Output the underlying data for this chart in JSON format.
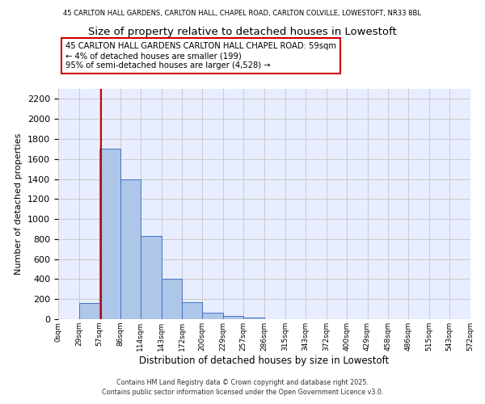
{
  "title_top": "45 CARLTON HALL GARDENS, CARLTON HALL, CHAPEL ROAD, CARLTON COLVILLE, LOWESTOFT, NR33 8BL",
  "title_main": "Size of property relative to detached houses in Lowestoft",
  "xlabel": "Distribution of detached houses by size in Lowestoft",
  "ylabel": "Number of detached properties",
  "bar_edges": [
    0,
    29,
    57,
    86,
    114,
    143,
    172,
    200,
    229,
    257,
    286,
    315,
    343,
    372,
    400,
    429,
    458,
    486,
    515,
    543,
    572
  ],
  "bar_heights": [
    0,
    160,
    1700,
    1400,
    830,
    400,
    170,
    65,
    30,
    20,
    0,
    0,
    0,
    0,
    0,
    0,
    0,
    0,
    0,
    0
  ],
  "bar_color": "#aec6e8",
  "bar_edgecolor": "#4472c4",
  "vline_x": 59,
  "vline_color": "#cc0000",
  "annotation_title": "45 CARLTON HALL GARDENS CARLTON HALL CHAPEL ROAD: 59sqm",
  "annotation_line2": "← 4% of detached houses are smaller (199)",
  "annotation_line3": "95% of semi-detached houses are larger (4,528) →",
  "annotation_box_color": "#ffffff",
  "annotation_box_edgecolor": "#cc0000",
  "tick_labels": [
    "0sqm",
    "29sqm",
    "57sqm",
    "86sqm",
    "114sqm",
    "143sqm",
    "172sqm",
    "200sqm",
    "229sqm",
    "257sqm",
    "286sqm",
    "315sqm",
    "343sqm",
    "372sqm",
    "400sqm",
    "429sqm",
    "458sqm",
    "486sqm",
    "515sqm",
    "543sqm",
    "572sqm"
  ],
  "ylim": [
    0,
    2300
  ],
  "yticks": [
    0,
    200,
    400,
    600,
    800,
    1000,
    1200,
    1400,
    1600,
    1800,
    2000,
    2200
  ],
  "grid_color": "#cccccc",
  "bg_color": "#e8eeff",
  "footer1": "Contains HM Land Registry data © Crown copyright and database right 2025.",
  "footer2": "Contains public sector information licensed under the Open Government Licence v3.0."
}
